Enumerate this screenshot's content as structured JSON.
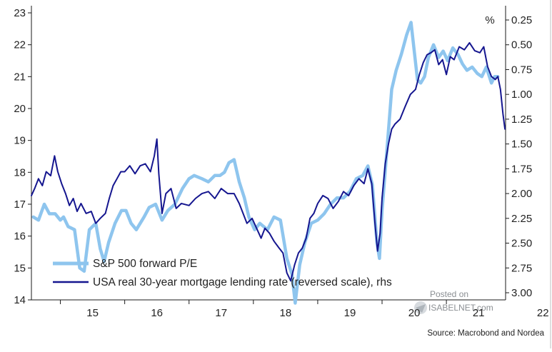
{
  "chart_data": {
    "type": "line",
    "title": "",
    "xlabel": "",
    "ylabel": "",
    "ylabel_right": "%",
    "x_ticks": [
      "15",
      "16",
      "17",
      "18",
      "19",
      "20",
      "21",
      "22"
    ],
    "y_left_ticks": [
      "14",
      "15",
      "16",
      "17",
      "18",
      "19",
      "20",
      "21",
      "22",
      "23"
    ],
    "y_right_ticks": [
      "0.25",
      "0.50",
      "0.75",
      "1.00",
      "1.25",
      "1.50",
      "1.75",
      "2.00",
      "2.25",
      "2.50",
      "2.75",
      "3.00"
    ],
    "ylim_left": [
      14,
      23
    ],
    "ylim_right_reversed": [
      3.0,
      0.25
    ],
    "xlim": [
      2014.55,
      2021.92
    ],
    "grid": false,
    "legend_position": "bottom-left",
    "source": "Source: Macrobond and Nordea",
    "watermark": {
      "line1": "Posted on",
      "line2": "ISABELNET.com"
    },
    "series": [
      {
        "name": "S&P 500 forward P/E",
        "axis": "left",
        "color": "#8ec5ee",
        "points": [
          [
            2014.58,
            16.6
          ],
          [
            2014.66,
            16.5
          ],
          [
            2014.75,
            17.0
          ],
          [
            2014.83,
            16.7
          ],
          [
            2014.92,
            16.7
          ],
          [
            2015.0,
            16.5
          ],
          [
            2015.05,
            16.6
          ],
          [
            2015.12,
            16.3
          ],
          [
            2015.22,
            16.2
          ],
          [
            2015.3,
            15.0
          ],
          [
            2015.37,
            14.9
          ],
          [
            2015.45,
            16.2
          ],
          [
            2015.55,
            16.4
          ],
          [
            2015.62,
            15.6
          ],
          [
            2015.68,
            15.2
          ],
          [
            2015.75,
            15.8
          ],
          [
            2015.85,
            16.4
          ],
          [
            2015.95,
            16.8
          ],
          [
            2016.02,
            16.8
          ],
          [
            2016.1,
            16.4
          ],
          [
            2016.18,
            16.2
          ],
          [
            2016.3,
            16.6
          ],
          [
            2016.38,
            16.9
          ],
          [
            2016.48,
            17.0
          ],
          [
            2016.58,
            16.5
          ],
          [
            2016.67,
            16.8
          ],
          [
            2016.78,
            17.0
          ],
          [
            2016.9,
            17.5
          ],
          [
            2017.0,
            17.8
          ],
          [
            2017.08,
            17.9
          ],
          [
            2017.2,
            17.8
          ],
          [
            2017.3,
            17.7
          ],
          [
            2017.4,
            17.9
          ],
          [
            2017.48,
            17.9
          ],
          [
            2017.55,
            18.0
          ],
          [
            2017.62,
            18.3
          ],
          [
            2017.7,
            18.4
          ],
          [
            2017.78,
            17.7
          ],
          [
            2017.86,
            17.2
          ],
          [
            2017.93,
            16.6
          ],
          [
            2018.02,
            16.2
          ],
          [
            2018.1,
            16.4
          ],
          [
            2018.22,
            16.2
          ],
          [
            2018.32,
            16.6
          ],
          [
            2018.42,
            16.5
          ],
          [
            2018.52,
            15.3
          ],
          [
            2018.6,
            14.8
          ],
          [
            2018.65,
            13.9
          ],
          [
            2018.72,
            15.1
          ],
          [
            2018.8,
            15.8
          ],
          [
            2018.9,
            16.4
          ],
          [
            2019.0,
            16.5
          ],
          [
            2019.1,
            16.7
          ],
          [
            2019.2,
            17.0
          ],
          [
            2019.3,
            17.2
          ],
          [
            2019.4,
            17.2
          ],
          [
            2019.5,
            17.4
          ],
          [
            2019.6,
            17.8
          ],
          [
            2019.7,
            17.9
          ],
          [
            2019.78,
            18.2
          ],
          [
            2019.85,
            17.6
          ],
          [
            2019.92,
            15.8
          ],
          [
            2019.96,
            15.3
          ],
          [
            2020.0,
            16.8
          ],
          [
            2020.08,
            18.8
          ],
          [
            2020.15,
            20.6
          ],
          [
            2020.22,
            21.2
          ],
          [
            2020.3,
            21.7
          ],
          [
            2020.38,
            22.3
          ],
          [
            2020.45,
            22.7
          ],
          [
            2020.5,
            21.8
          ],
          [
            2020.55,
            20.9
          ],
          [
            2020.6,
            20.8
          ],
          [
            2020.66,
            21.0
          ],
          [
            2020.72,
            21.6
          ],
          [
            2020.8,
            22.0
          ],
          [
            2020.88,
            21.6
          ],
          [
            2020.95,
            21.8
          ],
          [
            2021.02,
            21.5
          ],
          [
            2021.1,
            21.9
          ],
          [
            2021.18,
            21.7
          ],
          [
            2021.25,
            21.4
          ],
          [
            2021.32,
            21.2
          ],
          [
            2021.4,
            21.3
          ],
          [
            2021.48,
            21.1
          ],
          [
            2021.55,
            21.0
          ],
          [
            2021.62,
            21.3
          ],
          [
            2021.7,
            20.8
          ],
          [
            2021.75,
            21.0
          ],
          [
            2021.8,
            21.0
          ]
        ]
      },
      {
        "name": "USA real 30-year mortgage lending rate (reversed scale), rhs",
        "axis": "right",
        "color": "#15168f",
        "points": [
          [
            2014.55,
            2.02
          ],
          [
            2014.6,
            1.95
          ],
          [
            2014.66,
            1.85
          ],
          [
            2014.72,
            1.92
          ],
          [
            2014.78,
            1.78
          ],
          [
            2014.85,
            1.82
          ],
          [
            2014.91,
            1.62
          ],
          [
            2014.96,
            1.78
          ],
          [
            2015.02,
            1.9
          ],
          [
            2015.08,
            2.0
          ],
          [
            2015.14,
            2.12
          ],
          [
            2015.2,
            2.05
          ],
          [
            2015.26,
            2.18
          ],
          [
            2015.32,
            2.1
          ],
          [
            2015.4,
            2.2
          ],
          [
            2015.48,
            2.18
          ],
          [
            2015.55,
            2.3
          ],
          [
            2015.62,
            2.25
          ],
          [
            2015.7,
            2.2
          ],
          [
            2015.76,
            2.05
          ],
          [
            2015.82,
            1.92
          ],
          [
            2015.88,
            1.85
          ],
          [
            2015.94,
            1.78
          ],
          [
            2016.0,
            1.78
          ],
          [
            2016.08,
            1.72
          ],
          [
            2016.16,
            1.8
          ],
          [
            2016.24,
            1.72
          ],
          [
            2016.32,
            1.7
          ],
          [
            2016.4,
            1.78
          ],
          [
            2016.46,
            1.62
          ],
          [
            2016.5,
            1.45
          ],
          [
            2016.53,
            1.8
          ],
          [
            2016.58,
            2.2
          ],
          [
            2016.64,
            2.0
          ],
          [
            2016.72,
            1.95
          ],
          [
            2016.8,
            2.15
          ],
          [
            2016.88,
            2.1
          ],
          [
            2017.0,
            2.12
          ],
          [
            2017.1,
            2.05
          ],
          [
            2017.2,
            2.0
          ],
          [
            2017.3,
            1.98
          ],
          [
            2017.4,
            2.05
          ],
          [
            2017.5,
            1.95
          ],
          [
            2017.6,
            2.0
          ],
          [
            2017.7,
            2.0
          ],
          [
            2017.78,
            2.1
          ],
          [
            2017.84,
            2.2
          ],
          [
            2017.9,
            2.3
          ],
          [
            2017.98,
            2.25
          ],
          [
            2018.05,
            2.35
          ],
          [
            2018.12,
            2.45
          ],
          [
            2018.18,
            2.35
          ],
          [
            2018.25,
            2.4
          ],
          [
            2018.32,
            2.48
          ],
          [
            2018.4,
            2.55
          ],
          [
            2018.46,
            2.6
          ],
          [
            2018.52,
            2.8
          ],
          [
            2018.58,
            2.88
          ],
          [
            2018.64,
            2.72
          ],
          [
            2018.7,
            2.6
          ],
          [
            2018.76,
            2.55
          ],
          [
            2018.82,
            2.45
          ],
          [
            2018.88,
            2.25
          ],
          [
            2018.94,
            2.2
          ],
          [
            2019.0,
            2.1
          ],
          [
            2019.08,
            2.02
          ],
          [
            2019.16,
            2.05
          ],
          [
            2019.24,
            2.15
          ],
          [
            2019.32,
            2.08
          ],
          [
            2019.4,
            1.98
          ],
          [
            2019.48,
            2.02
          ],
          [
            2019.56,
            1.92
          ],
          [
            2019.64,
            1.85
          ],
          [
            2019.72,
            1.9
          ],
          [
            2019.78,
            1.75
          ],
          [
            2019.84,
            1.9
          ],
          [
            2019.89,
            2.3
          ],
          [
            2019.93,
            2.58
          ],
          [
            2019.97,
            2.4
          ],
          [
            2020.0,
            2.05
          ],
          [
            2020.05,
            1.7
          ],
          [
            2020.1,
            1.5
          ],
          [
            2020.15,
            1.35
          ],
          [
            2020.2,
            1.3
          ],
          [
            2020.28,
            1.25
          ],
          [
            2020.36,
            1.12
          ],
          [
            2020.44,
            1.0
          ],
          [
            2020.52,
            0.95
          ],
          [
            2020.58,
            0.8
          ],
          [
            2020.64,
            0.68
          ],
          [
            2020.7,
            0.6
          ],
          [
            2020.76,
            0.58
          ],
          [
            2020.82,
            0.55
          ],
          [
            2020.88,
            0.7
          ],
          [
            2020.94,
            0.65
          ],
          [
            2021.0,
            0.8
          ],
          [
            2021.06,
            0.62
          ],
          [
            2021.12,
            0.65
          ],
          [
            2021.2,
            0.52
          ],
          [
            2021.28,
            0.55
          ],
          [
            2021.36,
            0.48
          ],
          [
            2021.44,
            0.56
          ],
          [
            2021.52,
            0.58
          ],
          [
            2021.58,
            0.52
          ],
          [
            2021.64,
            0.72
          ],
          [
            2021.7,
            0.82
          ],
          [
            2021.76,
            0.85
          ],
          [
            2021.8,
            0.82
          ],
          [
            2021.84,
            0.95
          ],
          [
            2021.88,
            1.2
          ],
          [
            2021.91,
            1.35
          ]
        ]
      }
    ]
  }
}
